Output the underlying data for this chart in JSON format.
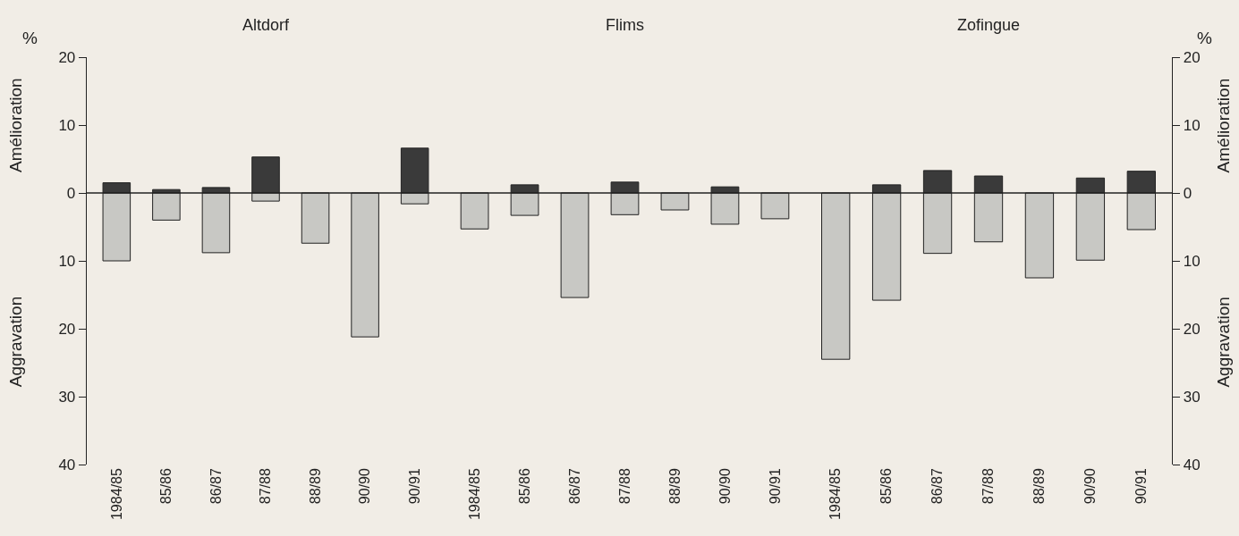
{
  "chart_data": [
    {
      "type": "bar",
      "title": "Altdorf",
      "ylabel": "%",
      "annotations": [
        "Amélioration",
        "Aggravation"
      ],
      "stacked": true,
      "categories": [
        "1984/85",
        "85/86",
        "86/87",
        "87/88",
        "88/89",
        "90/90",
        "90/91"
      ],
      "ylim": [
        -40,
        20
      ],
      "yticks": [
        20,
        10,
        0,
        {
          "value": -10,
          "label": "10"
        },
        {
          "value": -20,
          "label": "20"
        },
        {
          "value": -30,
          "label": "30"
        },
        {
          "value": -40,
          "label": "40"
        }
      ],
      "series": [
        {
          "color": "#3a3a3a",
          "values": [
            1.5,
            0.5,
            0.8,
            5.3,
            null,
            null,
            6.6
          ]
        },
        {
          "color": "#c8c8c4",
          "values": [
            -10,
            -4,
            -8.8,
            -1.2,
            -7.4,
            -21.2,
            -1.6
          ]
        }
      ]
    },
    {
      "type": "bar",
      "title": "Flims",
      "stacked": true,
      "tick_labels": "x",
      "categories": [
        "1984/85",
        "85/86",
        "86/87",
        "87/88",
        "88/89",
        "90/90",
        "90/91"
      ],
      "ylim": [
        -40,
        20
      ],
      "yticks": [
        20,
        10,
        0,
        -10,
        -20,
        -30,
        -40
      ],
      "series": [
        {
          "color": "#3a3a3a",
          "values": [
            null,
            1.2,
            null,
            1.6,
            null,
            0.9,
            null
          ]
        },
        {
          "color": "#c8c8c4",
          "values": [
            -5.3,
            -3.3,
            -15.4,
            -3.2,
            -2.5,
            -4.6,
            -3.8
          ]
        }
      ]
    },
    {
      "type": "bar",
      "title": "Zofingue",
      "y2label": "%",
      "annotations": [
        "Amélioration",
        "Aggravation"
      ],
      "stacked": true,
      "categories": [
        "1984/85",
        "85/86",
        "86/87",
        "87/88",
        "88/89",
        "90/90",
        "90/91"
      ],
      "y2lim": [
        -40,
        20
      ],
      "y2ticks": [
        20,
        10,
        0,
        {
          "value": -10,
          "label": "10"
        },
        {
          "value": -20,
          "label": "20"
        },
        {
          "value": -30,
          "label": "30"
        },
        {
          "value": -40,
          "label": "40"
        }
      ],
      "series": [
        {
          "axis": "y2",
          "color": "#3a3a3a",
          "values": [
            null,
            1.2,
            3.3,
            2.5,
            null,
            2.2,
            3.2
          ]
        },
        {
          "axis": "y2",
          "color": "#c8c8c4",
          "values": [
            -24.5,
            -15.8,
            -8.9,
            -7.2,
            -12.5,
            -9.9,
            -5.4
          ]
        }
      ]
    }
  ]
}
